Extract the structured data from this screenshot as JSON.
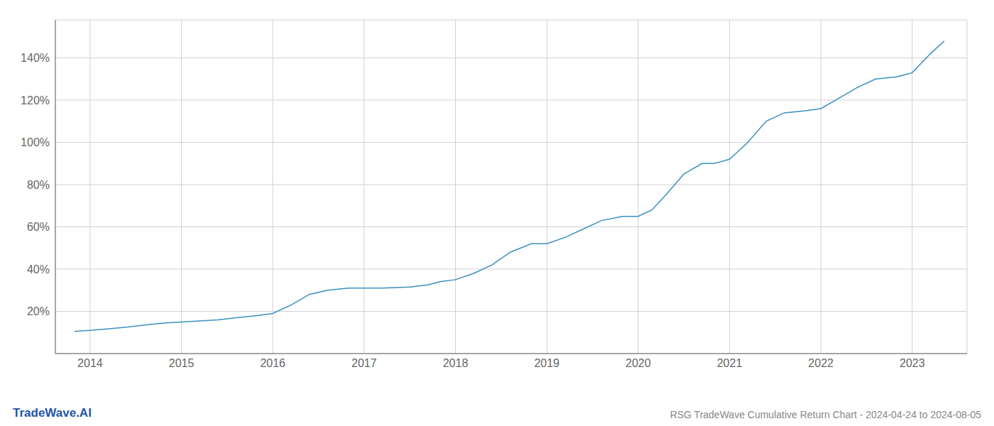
{
  "chart_data": {
    "type": "line",
    "x": [
      2013.83,
      2014.0,
      2014.15,
      2014.4,
      2014.6,
      2014.83,
      2015.0,
      2015.2,
      2015.4,
      2015.6,
      2015.83,
      2016.0,
      2016.2,
      2016.4,
      2016.6,
      2016.83,
      2017.0,
      2017.2,
      2017.5,
      2017.7,
      2017.83,
      2018.0,
      2018.2,
      2018.4,
      2018.6,
      2018.83,
      2019.0,
      2019.2,
      2019.4,
      2019.6,
      2019.83,
      2020.0,
      2020.15,
      2020.3,
      2020.5,
      2020.7,
      2020.83,
      2021.0,
      2021.2,
      2021.4,
      2021.6,
      2021.83,
      2022.0,
      2022.2,
      2022.4,
      2022.6,
      2022.83,
      2023.0,
      2023.2,
      2023.35
    ],
    "values": [
      10.5,
      11,
      11.5,
      12.5,
      13.5,
      14.5,
      15,
      15.5,
      16,
      17,
      18,
      19,
      23,
      28,
      30,
      31,
      31,
      31,
      31.5,
      32.5,
      34,
      35,
      38,
      42,
      48,
      52,
      52,
      55,
      59,
      63,
      65,
      65,
      68,
      75,
      85,
      90,
      90,
      92,
      100,
      110,
      114,
      115,
      116,
      121,
      126,
      130,
      131,
      133,
      142,
      148
    ],
    "color": "#3a8fbf",
    "xlim": [
      2013.62,
      2023.6
    ],
    "xticks": [
      2014,
      2015,
      2016,
      2017,
      2018,
      2019,
      2020,
      2021,
      2022,
      2023
    ],
    "ylim": [
      0,
      158
    ],
    "yticks": [
      {
        "value": 20,
        "label": "20%"
      },
      {
        "value": 40,
        "label": "40%"
      },
      {
        "value": 60,
        "label": "60%"
      },
      {
        "value": 80,
        "label": "80%"
      },
      {
        "value": 100,
        "label": "100%"
      },
      {
        "value": 120,
        "label": "120%"
      },
      {
        "value": 140,
        "label": "140%"
      }
    ],
    "grid": true,
    "annotations": [
      {
        "text": "TradeWave.AI",
        "color": "#2255aa"
      },
      {
        "text": "RSG TradeWave Cumulative Return Chart - 2024-04-24 to 2024-08-05",
        "color": "#888888"
      }
    ]
  }
}
